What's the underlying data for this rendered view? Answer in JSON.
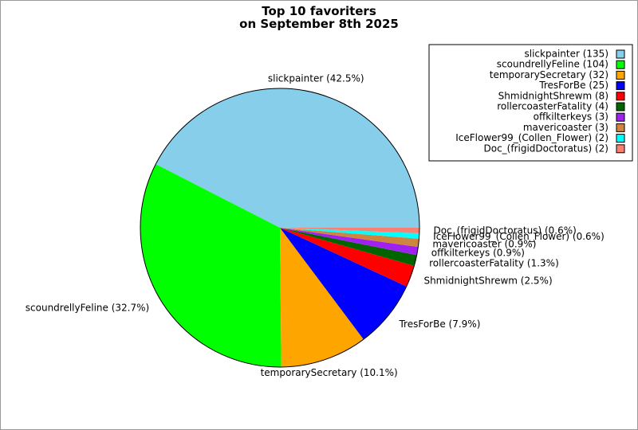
{
  "chart_data": {
    "type": "pie",
    "title": "Top 10 favoriters\non September 8th 2025",
    "labels": [
      "slickpainter (135)",
      "scoundrellyFeline (104)",
      "temporarySecretary (32)",
      "TresForBe (25)",
      "ShmidnightShrewm (8)",
      "rollercoasterFatality (4)",
      "offkilterkeys (3)",
      "mavericoaster (3)",
      "IceFlower99_(Collen_Flower) (2)",
      "Doc_(frigidDoctoratus) (2)"
    ],
    "values": [
      135,
      104,
      32,
      25,
      8,
      4,
      3,
      3,
      2,
      2
    ],
    "value_labels": [
      "slickpainter (42.5%)",
      "scoundrellyFeline (32.7%)",
      "temporarySecretary (10.1%)",
      "TresForBe (7.9%)",
      "ShmidnightShrewm (2.5%)",
      "rollercoasterFatality (1.3%)",
      "offkilterkeys (0.9%)",
      "mavericoaster (0.9%)",
      "IceFlower99_(Collen_Flower) (0.6%)",
      "Doc_(frigidDoctoratus) (0.6%)"
    ],
    "colors": [
      "#87ceeb",
      "#00ff00",
      "#ffa500",
      "#0000ff",
      "#ff0000",
      "#006400",
      "#a020f0",
      "#cd853f",
      "#00ffff",
      "#fa8072"
    ],
    "legend": "upper right"
  }
}
